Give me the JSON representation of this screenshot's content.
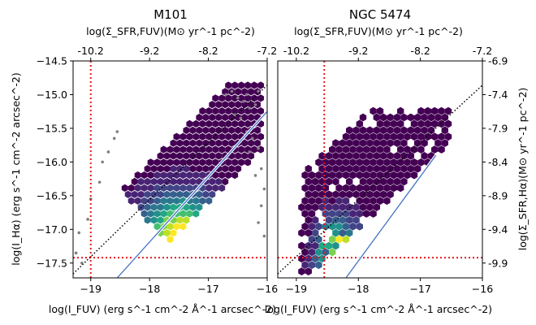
{
  "chart_data": [
    {
      "type": "hexbin",
      "title": "M101",
      "xlabel": "log(I_FUV) (erg s^-1 cm^-2 Å^-1 arcsec^-2)",
      "ylabel": "log(I_Hα) (erg s^-1 cm^-2 arcsec^-2)",
      "top_xlabel": "log(Σ_SFR,FUV)(M⊙ yr^-1 pc^-2)",
      "xlim": [
        -19.3,
        -16.0
      ],
      "ylim": [
        -17.72,
        -14.5
      ],
      "xticks": [
        -19,
        -18,
        -17,
        -16
      ],
      "yticks": [
        -17.5,
        -17.0,
        -16.5,
        -16.0,
        -15.5,
        -15.0,
        -14.5
      ],
      "top_tick_labels": [
        "-10.2",
        "-9.2",
        "-8.2",
        "-7.2"
      ],
      "threshold_x": -19.0,
      "threshold_y": -17.42,
      "one_to_one_line": [
        [
          -19.3,
          -17.66
        ],
        [
          -16.0,
          -14.86
        ]
      ],
      "fit_line": [
        [
          -18.55,
          -17.72
        ],
        [
          -16.0,
          -15.25
        ]
      ],
      "density_peak": [
        -17.45,
        -17.12
      ],
      "outliers": [
        [
          -16.5,
          -15.05
        ],
        [
          -16.4,
          -15.1
        ],
        [
          -16.3,
          -15.2
        ],
        [
          -16.55,
          -15.3
        ],
        [
          -16.45,
          -15.35
        ],
        [
          -16.2,
          -15.15
        ],
        [
          -16.35,
          -15.55
        ],
        [
          -16.25,
          -15.65
        ],
        [
          -16.15,
          -15.8
        ],
        [
          -16.3,
          -15.85
        ],
        [
          -16.1,
          -16.1
        ],
        [
          -16.2,
          -16.2
        ],
        [
          -16.05,
          -16.4
        ],
        [
          -16.1,
          -16.65
        ],
        [
          -16.15,
          -16.9
        ],
        [
          -16.05,
          -17.1
        ],
        [
          -18.55,
          -15.55
        ],
        [
          -18.6,
          -15.65
        ],
        [
          -18.7,
          -15.85
        ],
        [
          -18.8,
          -16.0
        ],
        [
          -18.85,
          -16.3
        ],
        [
          -19.0,
          -16.55
        ],
        [
          -19.05,
          -16.85
        ],
        [
          -19.2,
          -17.05
        ],
        [
          -19.25,
          -17.35
        ],
        [
          -19.15,
          -17.5
        ],
        [
          -16.7,
          -15.0
        ],
        [
          -16.6,
          -14.95
        ],
        [
          -16.15,
          -14.95
        ],
        [
          -16.35,
          -15.0
        ]
      ]
    },
    {
      "type": "hexbin",
      "title": "NGC 5474",
      "xlabel": "log(I_FUV) (erg s^-1 cm^-2 Å^-1 arcsec^-2)",
      "top_xlabel": "log(Σ_SFR,FUV)(M⊙ yr^-1 pc^-2)",
      "right_ylabel": "log(Σ_SFR,Hα)(M⊙ yr^-1 pc^-2)",
      "xlim": [
        -19.3,
        -16.0
      ],
      "ylim": [
        -17.72,
        -14.5
      ],
      "xticks": [
        -19,
        -18,
        -17,
        -16
      ],
      "top_tick_labels": [
        "-10.2",
        "-9.2",
        "-8.2",
        "-7.2"
      ],
      "right_tick_labels": [
        "-6.9",
        "-7.4",
        "-7.9",
        "-8.4",
        "-8.9",
        "-9.4",
        "-9.9"
      ],
      "threshold_x": -18.55,
      "threshold_y": -17.42,
      "one_to_one_line": [
        [
          -19.3,
          -17.66
        ],
        [
          -16.0,
          -14.86
        ]
      ],
      "fit_line": [
        [
          -18.2,
          -17.72
        ],
        [
          -16.75,
          -15.9
        ]
      ],
      "density_peak": [
        -18.3,
        -17.3
      ]
    }
  ]
}
